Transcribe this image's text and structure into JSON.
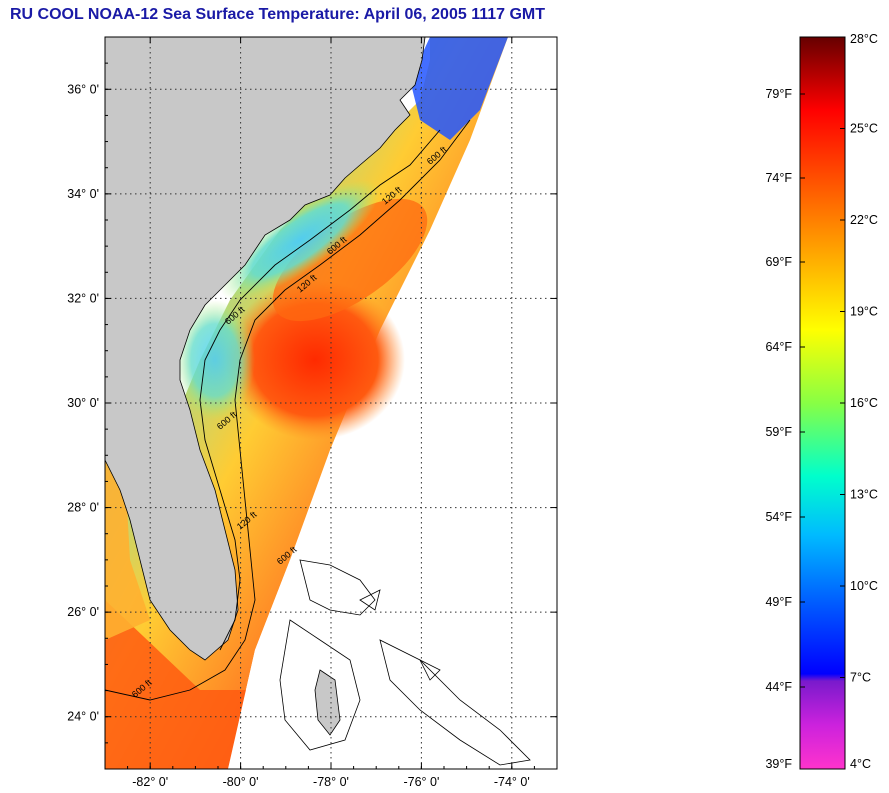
{
  "title": "RU COOL  NOAA-12  Sea Surface Temperature:  April 06, 2005 1117 GMT",
  "map": {
    "lat_ticks": [
      {
        "value": 36,
        "label": "36° 0'"
      },
      {
        "value": 34,
        "label": "34° 0'"
      },
      {
        "value": 32,
        "label": "32° 0'"
      },
      {
        "value": 30,
        "label": "30° 0'"
      },
      {
        "value": 28,
        "label": "28° 0'"
      },
      {
        "value": 26,
        "label": "26° 0'"
      },
      {
        "value": 24,
        "label": "24° 0'"
      }
    ],
    "lon_ticks": [
      {
        "value": -82,
        "label": "-82° 0'"
      },
      {
        "value": -80,
        "label": "-80° 0'"
      },
      {
        "value": -78,
        "label": "-78° 0'"
      },
      {
        "value": -76,
        "label": "-76° 0'"
      },
      {
        "value": -74,
        "label": "-74° 0'"
      }
    ],
    "lat_range": [
      23,
      37
    ],
    "lon_range": [
      -83,
      -73
    ],
    "grid": true,
    "land_color": "#c8c8c8",
    "contour_labels": [
      "600 ft",
      "120 ft",
      "600 ft",
      "120 ft",
      "600 ft",
      "600 ft",
      "120 ft",
      "600 ft",
      "600 ft"
    ]
  },
  "colorbar": {
    "celsius_labels": [
      "28°C",
      "25°C",
      "22°C",
      "19°C",
      "16°C",
      "13°C",
      "10°C",
      "7°C",
      "4°C"
    ],
    "fahrenheit_labels": [
      "79°F",
      "74°F",
      "69°F",
      "64°F",
      "59°F",
      "54°F",
      "49°F",
      "44°F",
      "39°F"
    ],
    "range_c": [
      4,
      28
    ],
    "colors": [
      "#ff33cc",
      "#7a1acc",
      "#0000ff",
      "#0066ff",
      "#00ccff",
      "#33ffaa",
      "#aaff33",
      "#ffff00",
      "#ffaa00",
      "#ff5500",
      "#ff0000",
      "#aa0000",
      "#660000"
    ]
  }
}
